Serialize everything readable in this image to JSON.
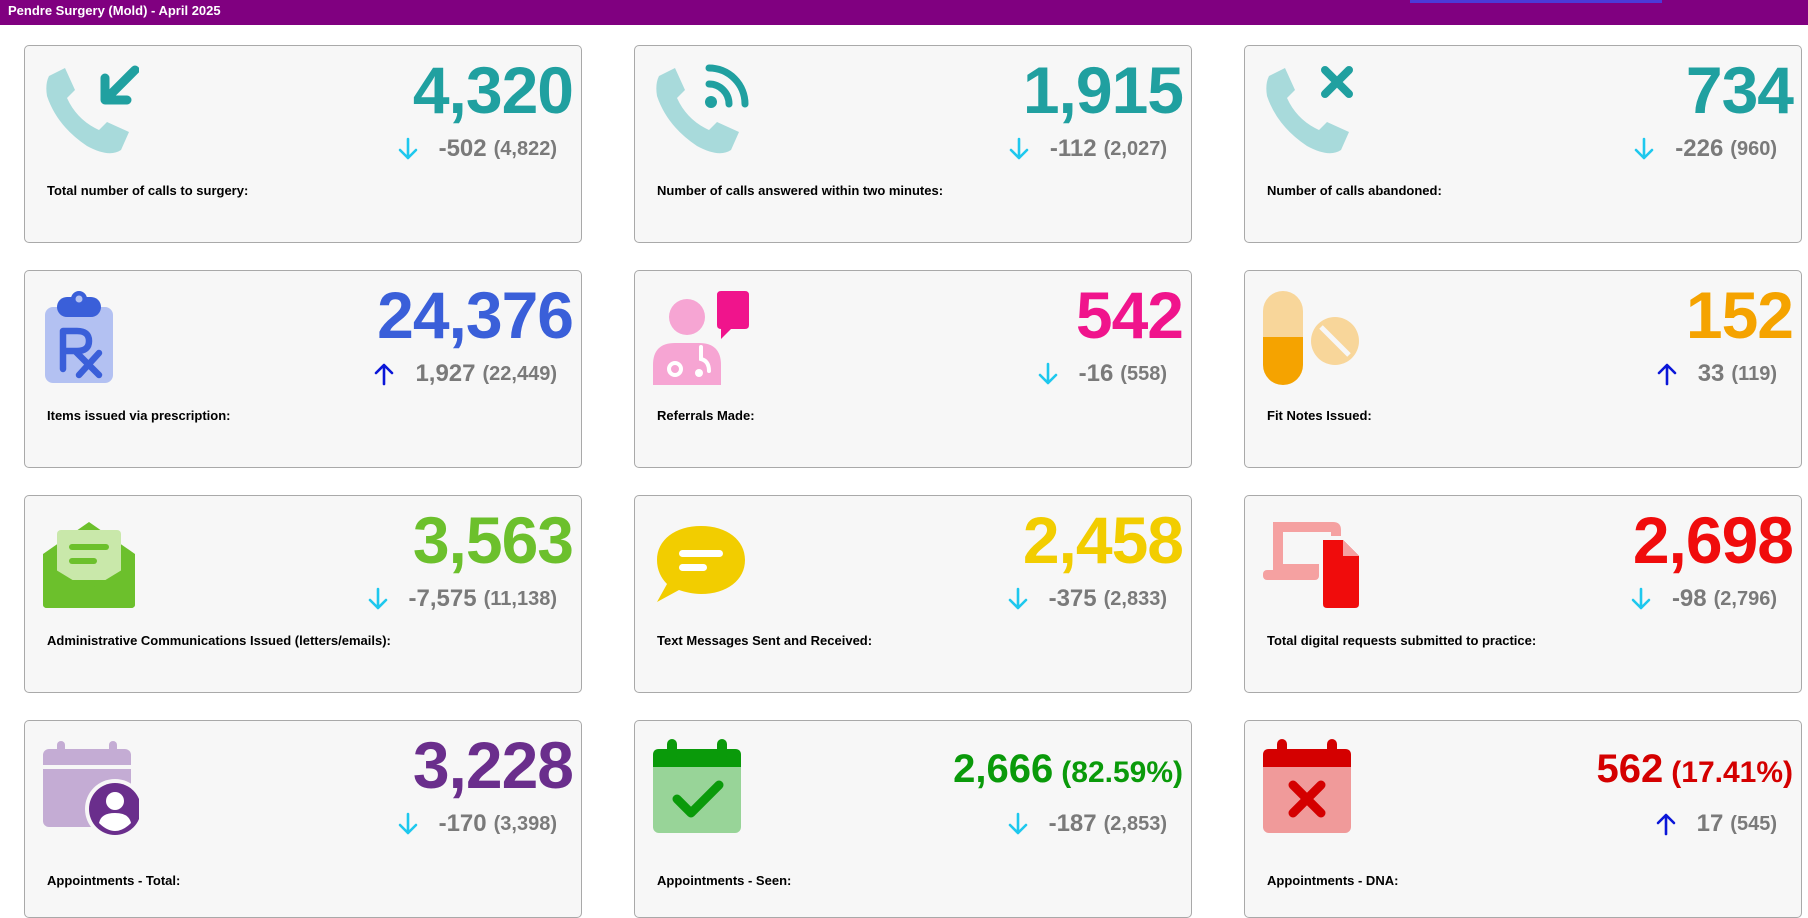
{
  "header": {
    "title": "Pendre Surgery (Mold) - April 2025",
    "bar_color": "#800080"
  },
  "arrow_colors": {
    "down": "#1ec8ee",
    "up": "#0a16d8"
  },
  "cards": [
    {
      "label": "Total number of calls to surgery:",
      "value": "4,320",
      "change": "-502",
      "previous": "(4,822)",
      "trend": "down",
      "color": "#20a0a0",
      "icon": "phone-incoming-icon"
    },
    {
      "label": "Number of calls answered within two minutes:",
      "value": "1,915",
      "change": "-112",
      "previous": "(2,027)",
      "trend": "down",
      "color": "#20a0a0",
      "icon": "phone-ringing-icon"
    },
    {
      "label": "Number of calls abandoned:",
      "value": "734",
      "change": "-226",
      "previous": "(960)",
      "trend": "down",
      "color": "#20a0a0",
      "icon": "phone-missed-icon"
    },
    {
      "label": "Items issued via prescription:",
      "value": "24,376",
      "change": "1,927",
      "previous": "(22,449)",
      "trend": "up",
      "color": "#3a5fd9",
      "icon": "prescription-clipboard-icon"
    },
    {
      "label": "Referrals Made:",
      "value": "542",
      "change": "-16",
      "previous": "(558)",
      "trend": "down",
      "color": "#f0148c",
      "icon": "doctor-chat-icon"
    },
    {
      "label": "Fit Notes Issued:",
      "value": "152",
      "change": "33",
      "previous": "(119)",
      "trend": "up",
      "color": "#f5a300",
      "icon": "pills-icon"
    },
    {
      "label": "Administrative Communications Issued (letters/emails):",
      "value": "3,563",
      "change": "-7,575",
      "previous": "(11,138)",
      "trend": "down",
      "color": "#6cc02c",
      "icon": "open-envelope-icon"
    },
    {
      "label": "Text Messages Sent and Received:",
      "value": "2,458",
      "change": "-375",
      "previous": "(2,833)",
      "trend": "down",
      "color": "#f2cd00",
      "icon": "speech-bubble-icon"
    },
    {
      "label": "Total digital requests submitted to practice:",
      "value": "2,698",
      "change": "-98",
      "previous": "(2,796)",
      "trend": "down",
      "color": "#f00c0c",
      "icon": "laptop-document-icon"
    },
    {
      "label": "Appointments - Total:",
      "value": "3,228",
      "change": "-170",
      "previous": "(3,398)",
      "trend": "down",
      "color": "#6a2e8c",
      "icon": "calendar-user-icon"
    },
    {
      "label": "Appointments - Seen:",
      "value": "2,666",
      "percent": "(82.59%)",
      "change": "-187",
      "previous": "(2,853)",
      "trend": "down",
      "color": "#0a9a0a",
      "icon": "calendar-check-icon"
    },
    {
      "label": "Appointments - DNA:",
      "value": "562",
      "percent": "(17.41%)",
      "change": "17",
      "previous": "(545)",
      "trend": "up",
      "color": "#d40000",
      "icon": "calendar-x-icon"
    }
  ]
}
